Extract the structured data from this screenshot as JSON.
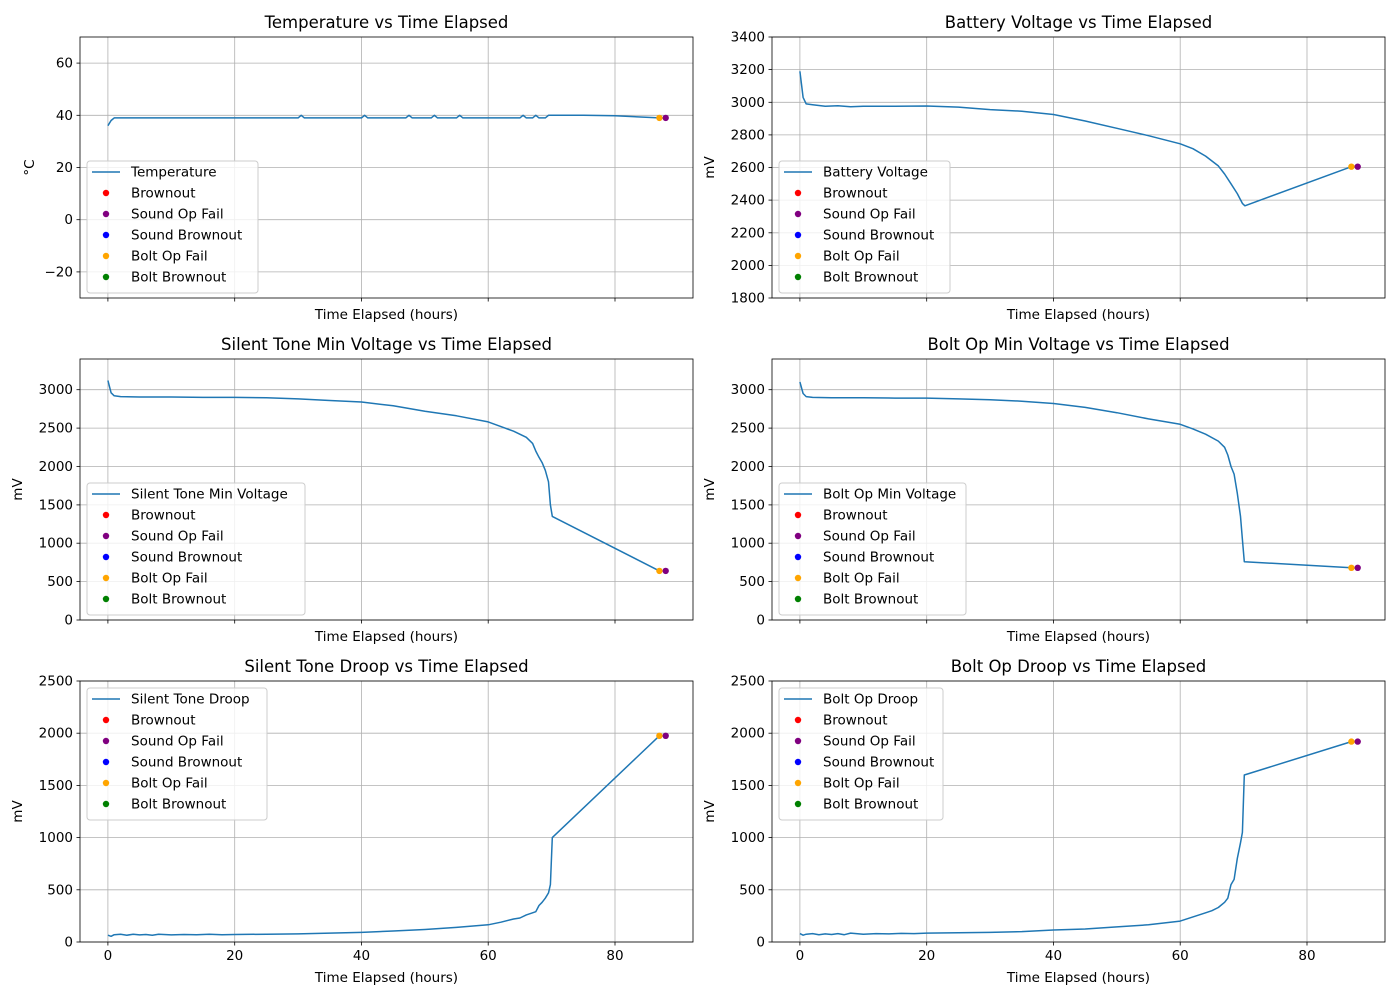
{
  "chart_data": [
    {
      "type": "line",
      "title": "Temperature vs Time Elapsed",
      "xlabel": "Time Elapsed (hours)",
      "ylabel": "°C",
      "xlim": [
        -4.4,
        92.3
      ],
      "ylim": [
        -30,
        70
      ],
      "xticks": [
        0,
        20,
        40,
        60,
        80
      ],
      "xtick_labels": [],
      "yticks": [
        -20,
        0,
        20,
        40,
        60
      ],
      "ytick_labels": [
        "−20",
        "0",
        "20",
        "40",
        "60"
      ],
      "grid": true,
      "legend_position": "center-left",
      "series": [
        {
          "name": "Temperature",
          "color": "#1f77b4",
          "x": [
            0,
            0.5,
            1,
            2,
            5,
            10,
            15,
            20,
            25,
            30,
            30.5,
            31,
            35,
            40,
            40.5,
            41,
            45,
            47,
            47.5,
            48,
            50,
            51,
            51.5,
            52,
            54,
            55,
            55.5,
            56,
            58,
            59,
            60,
            64,
            65,
            65.5,
            66,
            67,
            67.5,
            68,
            69,
            69.5,
            70,
            75,
            80,
            87
          ],
          "y": [
            36,
            38,
            39,
            39,
            39,
            39,
            39,
            39,
            39,
            39,
            40,
            39,
            39,
            39,
            40,
            39,
            39,
            39,
            40,
            39,
            39,
            39,
            40,
            39,
            39,
            39,
            40,
            39,
            39,
            39,
            39,
            39,
            39,
            40,
            39,
            39,
            40,
            39,
            39,
            40,
            40,
            40,
            39.8,
            39
          ]
        }
      ],
      "markers": [
        {
          "name": "Brownout",
          "color": "#ff0000",
          "x": [],
          "y": []
        },
        {
          "name": "Sound Op Fail",
          "color": "#800080",
          "x": [
            88
          ],
          "y": [
            39
          ]
        },
        {
          "name": "Sound Brownout",
          "color": "#0000ff",
          "x": [],
          "y": []
        },
        {
          "name": "Bolt Op Fail",
          "color": "#ffa500",
          "x": [
            87
          ],
          "y": [
            39
          ]
        },
        {
          "name": "Bolt Brownout",
          "color": "#008000",
          "x": [],
          "y": []
        }
      ]
    },
    {
      "type": "line",
      "title": "Battery Voltage vs Time Elapsed",
      "xlabel": "Time Elapsed (hours)",
      "ylabel": "mV",
      "xlim": [
        -4.4,
        92.3
      ],
      "ylim": [
        1800,
        3400
      ],
      "xticks": [
        0,
        20,
        40,
        60,
        80
      ],
      "xtick_labels": [],
      "yticks": [
        1800,
        2000,
        2200,
        2400,
        2600,
        2800,
        3000,
        3200,
        3400
      ],
      "ytick_labels": [
        "1800",
        "2000",
        "2200",
        "2400",
        "2600",
        "2800",
        "3000",
        "3200",
        "3400"
      ],
      "grid": true,
      "legend_position": "center-left",
      "series": [
        {
          "name": "Battery Voltage",
          "color": "#1f77b4",
          "x": [
            0,
            0.5,
            1,
            2,
            4,
            6,
            8,
            10,
            15,
            20,
            25,
            30,
            35,
            40,
            45,
            50,
            55,
            60,
            62,
            64,
            66,
            67,
            68,
            69,
            69.8,
            70.2,
            87
          ],
          "y": [
            3190,
            3030,
            2990,
            2985,
            2975,
            2978,
            2972,
            2975,
            2975,
            2977,
            2970,
            2955,
            2945,
            2925,
            2885,
            2840,
            2795,
            2745,
            2715,
            2670,
            2610,
            2560,
            2500,
            2440,
            2380,
            2365,
            2605
          ]
        }
      ],
      "markers": [
        {
          "name": "Brownout",
          "color": "#ff0000",
          "x": [],
          "y": []
        },
        {
          "name": "Sound Op Fail",
          "color": "#800080",
          "x": [
            88
          ],
          "y": [
            2605
          ]
        },
        {
          "name": "Sound Brownout",
          "color": "#0000ff",
          "x": [],
          "y": []
        },
        {
          "name": "Bolt Op Fail",
          "color": "#ffa500",
          "x": [
            87
          ],
          "y": [
            2605
          ]
        },
        {
          "name": "Bolt Brownout",
          "color": "#008000",
          "x": [],
          "y": []
        }
      ]
    },
    {
      "type": "line",
      "title": "Silent Tone Min Voltage vs Time Elapsed",
      "xlabel": "Time Elapsed (hours)",
      "ylabel": "mV",
      "xlim": [
        -4.4,
        92.3
      ],
      "ylim": [
        0,
        3400
      ],
      "xticks": [
        0,
        20,
        40,
        60,
        80
      ],
      "xtick_labels": [],
      "yticks": [
        0,
        500,
        1000,
        1500,
        2000,
        2500,
        3000
      ],
      "ytick_labels": [
        "0",
        "500",
        "1000",
        "1500",
        "2000",
        "2500",
        "3000"
      ],
      "grid": true,
      "legend_position": "center-left",
      "series": [
        {
          "name": "Silent Tone Min Voltage",
          "color": "#1f77b4",
          "x": [
            0,
            0.5,
            1,
            2,
            5,
            10,
            15,
            20,
            25,
            30,
            35,
            40,
            45,
            50,
            55,
            60,
            62,
            64,
            66,
            67,
            67.5,
            68,
            68.5,
            69,
            69.5,
            69.8,
            70.1,
            87
          ],
          "y": [
            3120,
            2960,
            2920,
            2910,
            2905,
            2905,
            2900,
            2900,
            2895,
            2880,
            2860,
            2840,
            2790,
            2720,
            2660,
            2580,
            2520,
            2460,
            2380,
            2300,
            2200,
            2120,
            2050,
            1950,
            1800,
            1500,
            1350,
            640
          ]
        }
      ],
      "markers": [
        {
          "name": "Brownout",
          "color": "#ff0000",
          "x": [],
          "y": []
        },
        {
          "name": "Sound Op Fail",
          "color": "#800080",
          "x": [
            88
          ],
          "y": [
            640
          ]
        },
        {
          "name": "Sound Brownout",
          "color": "#0000ff",
          "x": [],
          "y": []
        },
        {
          "name": "Bolt Op Fail",
          "color": "#ffa500",
          "x": [
            87
          ],
          "y": [
            640
          ]
        },
        {
          "name": "Bolt Brownout",
          "color": "#008000",
          "x": [],
          "y": []
        }
      ]
    },
    {
      "type": "line",
      "title": "Bolt Op Min Voltage vs Time Elapsed",
      "xlabel": "Time Elapsed (hours)",
      "ylabel": "mV",
      "xlim": [
        -4.4,
        92.3
      ],
      "ylim": [
        0,
        3400
      ],
      "xticks": [
        0,
        20,
        40,
        60,
        80
      ],
      "xtick_labels": [],
      "yticks": [
        0,
        500,
        1000,
        1500,
        2000,
        2500,
        3000
      ],
      "ytick_labels": [
        "0",
        "500",
        "1000",
        "1500",
        "2000",
        "2500",
        "3000"
      ],
      "grid": true,
      "legend_position": "center-left",
      "series": [
        {
          "name": "Bolt Op Min Voltage",
          "color": "#1f77b4",
          "x": [
            0,
            0.5,
            1,
            2,
            5,
            10,
            15,
            20,
            25,
            30,
            35,
            40,
            45,
            50,
            55,
            60,
            62,
            64,
            66,
            67,
            67.5,
            68,
            68.5,
            69,
            69.5,
            69.8,
            70.1,
            87
          ],
          "y": [
            3100,
            2950,
            2910,
            2900,
            2895,
            2895,
            2890,
            2890,
            2880,
            2870,
            2850,
            2820,
            2770,
            2700,
            2620,
            2550,
            2490,
            2420,
            2330,
            2250,
            2150,
            2000,
            1900,
            1650,
            1350,
            1050,
            760,
            680
          ]
        }
      ],
      "markers": [
        {
          "name": "Brownout",
          "color": "#ff0000",
          "x": [],
          "y": []
        },
        {
          "name": "Sound Op Fail",
          "color": "#800080",
          "x": [
            88
          ],
          "y": [
            680
          ]
        },
        {
          "name": "Sound Brownout",
          "color": "#0000ff",
          "x": [],
          "y": []
        },
        {
          "name": "Bolt Op Fail",
          "color": "#ffa500",
          "x": [
            87
          ],
          "y": [
            680
          ]
        },
        {
          "name": "Bolt Brownout",
          "color": "#008000",
          "x": [],
          "y": []
        }
      ]
    },
    {
      "type": "line",
      "title": "Silent Tone Droop vs Time Elapsed",
      "xlabel": "Time Elapsed (hours)",
      "ylabel": "mV",
      "xlim": [
        -4.4,
        92.3
      ],
      "ylim": [
        0,
        2500
      ],
      "xticks": [
        0,
        20,
        40,
        60,
        80
      ],
      "xtick_labels": [
        "0",
        "20",
        "40",
        "60",
        "80"
      ],
      "yticks": [
        0,
        500,
        1000,
        1500,
        2000,
        2500
      ],
      "ytick_labels": [
        "0",
        "500",
        "1000",
        "1500",
        "2000",
        "2500"
      ],
      "grid": true,
      "legend_position": "upper-left",
      "series": [
        {
          "name": "Silent Tone Droop",
          "color": "#1f77b4",
          "x": [
            0,
            0.5,
            1,
            2,
            3,
            4,
            5,
            6,
            7,
            8,
            10,
            12,
            14,
            16,
            18,
            20,
            25,
            30,
            35,
            40,
            45,
            50,
            55,
            60,
            62,
            64,
            65,
            66,
            67,
            67.5,
            68,
            68.5,
            69,
            69.5,
            69.8,
            70.1,
            87
          ],
          "y": [
            65,
            55,
            70,
            75,
            65,
            75,
            68,
            72,
            65,
            75,
            68,
            72,
            70,
            75,
            70,
            72,
            75,
            78,
            85,
            92,
            105,
            120,
            140,
            165,
            190,
            220,
            230,
            260,
            280,
            290,
            350,
            380,
            420,
            470,
            550,
            1000,
            1975
          ]
        }
      ],
      "markers": [
        {
          "name": "Brownout",
          "color": "#ff0000",
          "x": [],
          "y": []
        },
        {
          "name": "Sound Op Fail",
          "color": "#800080",
          "x": [
            88
          ],
          "y": [
            1975
          ]
        },
        {
          "name": "Sound Brownout",
          "color": "#0000ff",
          "x": [],
          "y": []
        },
        {
          "name": "Bolt Op Fail",
          "color": "#ffa500",
          "x": [
            87
          ],
          "y": [
            1975
          ]
        },
        {
          "name": "Bolt Brownout",
          "color": "#008000",
          "x": [],
          "y": []
        }
      ]
    },
    {
      "type": "line",
      "title": "Bolt Op Droop vs Time Elapsed",
      "xlabel": "Time Elapsed (hours)",
      "ylabel": "mV",
      "xlim": [
        -4.4,
        92.3
      ],
      "ylim": [
        0,
        2500
      ],
      "xticks": [
        0,
        20,
        40,
        60,
        80
      ],
      "xtick_labels": [
        "0",
        "20",
        "40",
        "60",
        "80"
      ],
      "yticks": [
        0,
        500,
        1000,
        1500,
        2000,
        2500
      ],
      "ytick_labels": [
        "0",
        "500",
        "1000",
        "1500",
        "2000",
        "2500"
      ],
      "grid": true,
      "legend_position": "upper-left",
      "series": [
        {
          "name": "Bolt Op Droop",
          "color": "#1f77b4",
          "x": [
            0,
            0.5,
            1,
            2,
            3,
            4,
            5,
            6,
            7,
            8,
            10,
            12,
            14,
            16,
            18,
            20,
            25,
            30,
            35,
            40,
            45,
            50,
            55,
            60,
            62,
            64,
            65,
            66,
            67,
            67.5,
            68,
            68.5,
            69,
            69.5,
            69.8,
            70.1,
            87
          ],
          "y": [
            80,
            65,
            75,
            80,
            70,
            78,
            72,
            80,
            70,
            85,
            75,
            80,
            78,
            82,
            80,
            85,
            88,
            92,
            100,
            115,
            125,
            145,
            165,
            200,
            240,
            280,
            300,
            330,
            380,
            420,
            550,
            600,
            800,
            950,
            1050,
            1600,
            1920
          ]
        }
      ],
      "markers": [
        {
          "name": "Brownout",
          "color": "#ff0000",
          "x": [],
          "y": []
        },
        {
          "name": "Sound Op Fail",
          "color": "#800080",
          "x": [
            88
          ],
          "y": [
            1920
          ]
        },
        {
          "name": "Sound Brownout",
          "color": "#0000ff",
          "x": [],
          "y": []
        },
        {
          "name": "Bolt Op Fail",
          "color": "#ffa500",
          "x": [
            87
          ],
          "y": [
            1920
          ]
        },
        {
          "name": "Bolt Brownout",
          "color": "#008000",
          "x": [],
          "y": []
        }
      ]
    }
  ]
}
